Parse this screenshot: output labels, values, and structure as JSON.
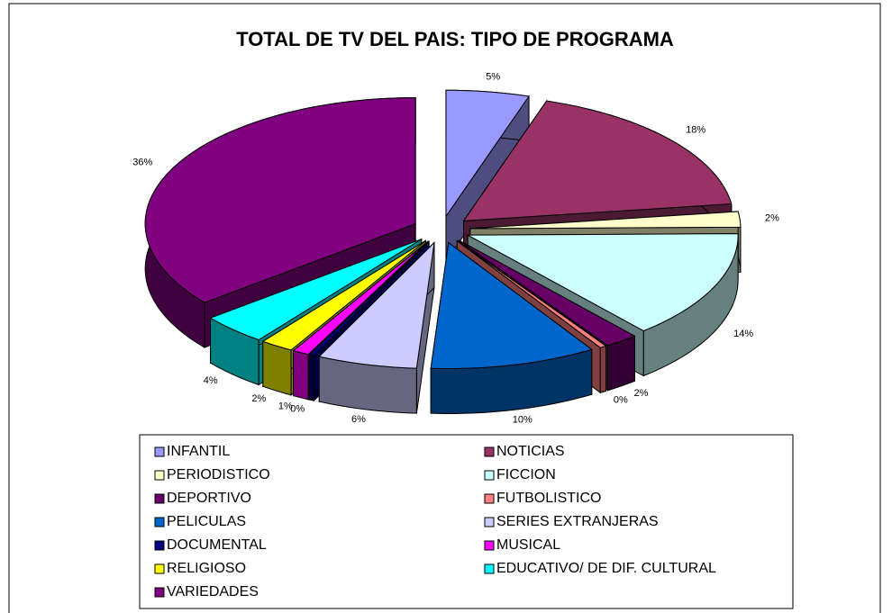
{
  "chart_data": {
    "type": "pie",
    "title": "TOTAL DE TV DEL PAIS: TIPO DE PROGRAMA",
    "categories": [
      "INFANTIL",
      "NOTICIAS",
      "PERIODISTICO",
      "FICCION",
      "DEPORTIVO",
      "FUTBOLISTICO",
      "PELICULAS",
      "SERIES EXTRANJERAS",
      "DOCUMENTAL",
      "MUSICAL",
      "RELIGIOSO",
      "EDUCATIVO/ DE DIF. CULTURAL",
      "VARIEDADES"
    ],
    "values": [
      5,
      18,
      2,
      14,
      2,
      0.4,
      10,
      6,
      0.3,
      1,
      2,
      4,
      36
    ],
    "value_labels": [
      "5%",
      "18%",
      "2%",
      "14%",
      "2%",
      "0%",
      "10%",
      "6%",
      "0%",
      "1%",
      "2%",
      "4%",
      "36%"
    ],
    "colors": [
      "#9999ff",
      "#993366",
      "#ffffcc",
      "#ccffff",
      "#660066",
      "#ff8080",
      "#0066cc",
      "#ccccff",
      "#000080",
      "#ff00ff",
      "#ffff00",
      "#00ffff",
      "#800080"
    ],
    "legend": "bottom"
  }
}
